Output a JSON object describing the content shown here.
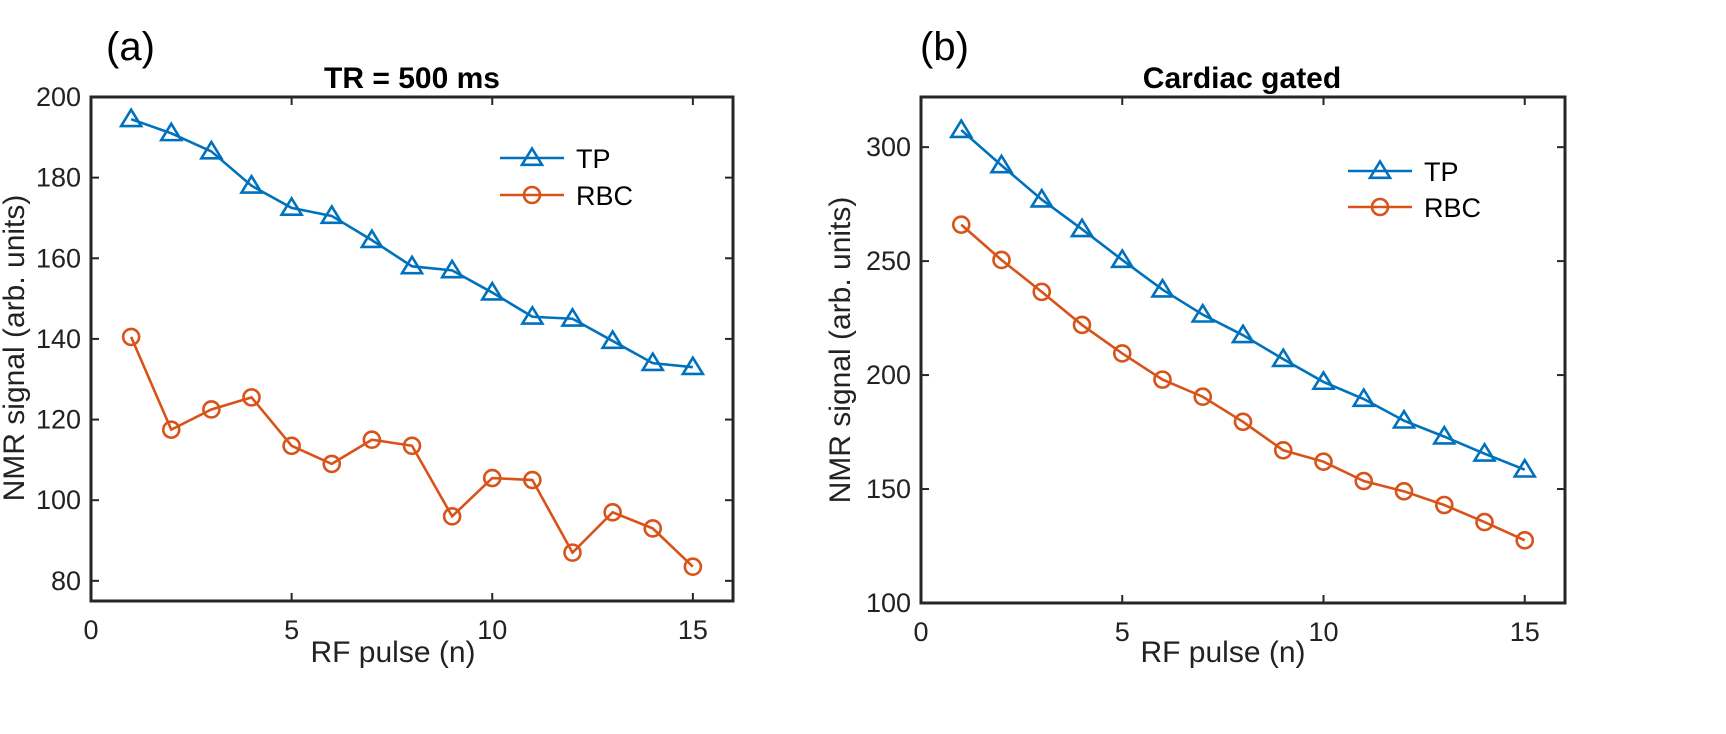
{
  "chart_data": [
    {
      "type": "line",
      "panel_label": "(a)",
      "title": "TR = 500 ms",
      "xlabel": "RF pulse (n)",
      "ylabel": "NMR signal (arb. units)",
      "xlim": [
        0,
        16
      ],
      "ylim": [
        75,
        200
      ],
      "xticks": [
        0,
        5,
        10,
        15
      ],
      "yticks": [
        80,
        100,
        120,
        140,
        160,
        180,
        200
      ],
      "legend_position": "top-right",
      "x": [
        1,
        2,
        3,
        4,
        5,
        6,
        7,
        8,
        9,
        10,
        11,
        12,
        13,
        14,
        15
      ],
      "series": [
        {
          "name": "TP",
          "color": "#0072BD",
          "marker": "triangle",
          "values": [
            194.5,
            191,
            186.5,
            178,
            172.5,
            170.5,
            164.5,
            158,
            157,
            151.5,
            145.5,
            145,
            139.5,
            134,
            133
          ]
        },
        {
          "name": "RBC",
          "color": "#D95319",
          "marker": "circle",
          "values": [
            140.5,
            117.5,
            122.5,
            125.5,
            113.5,
            109,
            115,
            113.5,
            96,
            105.5,
            105,
            87,
            97,
            93,
            83.5
          ]
        }
      ]
    },
    {
      "type": "line",
      "panel_label": "(b)",
      "title": "Cardiac gated",
      "xlabel": "RF pulse (n)",
      "ylabel": "NMR signal (arb. units)",
      "xlim": [
        0,
        16
      ],
      "ylim": [
        100,
        322
      ],
      "xticks": [
        0,
        5,
        10,
        15
      ],
      "yticks": [
        100,
        150,
        200,
        250,
        300
      ],
      "legend_position": "top-right",
      "x": [
        1,
        2,
        3,
        4,
        5,
        6,
        7,
        8,
        9,
        10,
        11,
        12,
        13,
        14,
        15
      ],
      "series": [
        {
          "name": "TP",
          "color": "#0072BD",
          "marker": "triangle",
          "values": [
            307.5,
            292,
            277,
            264,
            250.5,
            237.5,
            226.5,
            217.5,
            207,
            197,
            189.5,
            180,
            173,
            165.5,
            158.5
          ]
        },
        {
          "name": "RBC",
          "color": "#D95319",
          "marker": "circle",
          "values": [
            266,
            250.5,
            236.5,
            222,
            209.5,
            198,
            190.5,
            179.5,
            167,
            162,
            153.5,
            149,
            143,
            135.5,
            127.5
          ]
        }
      ]
    }
  ]
}
